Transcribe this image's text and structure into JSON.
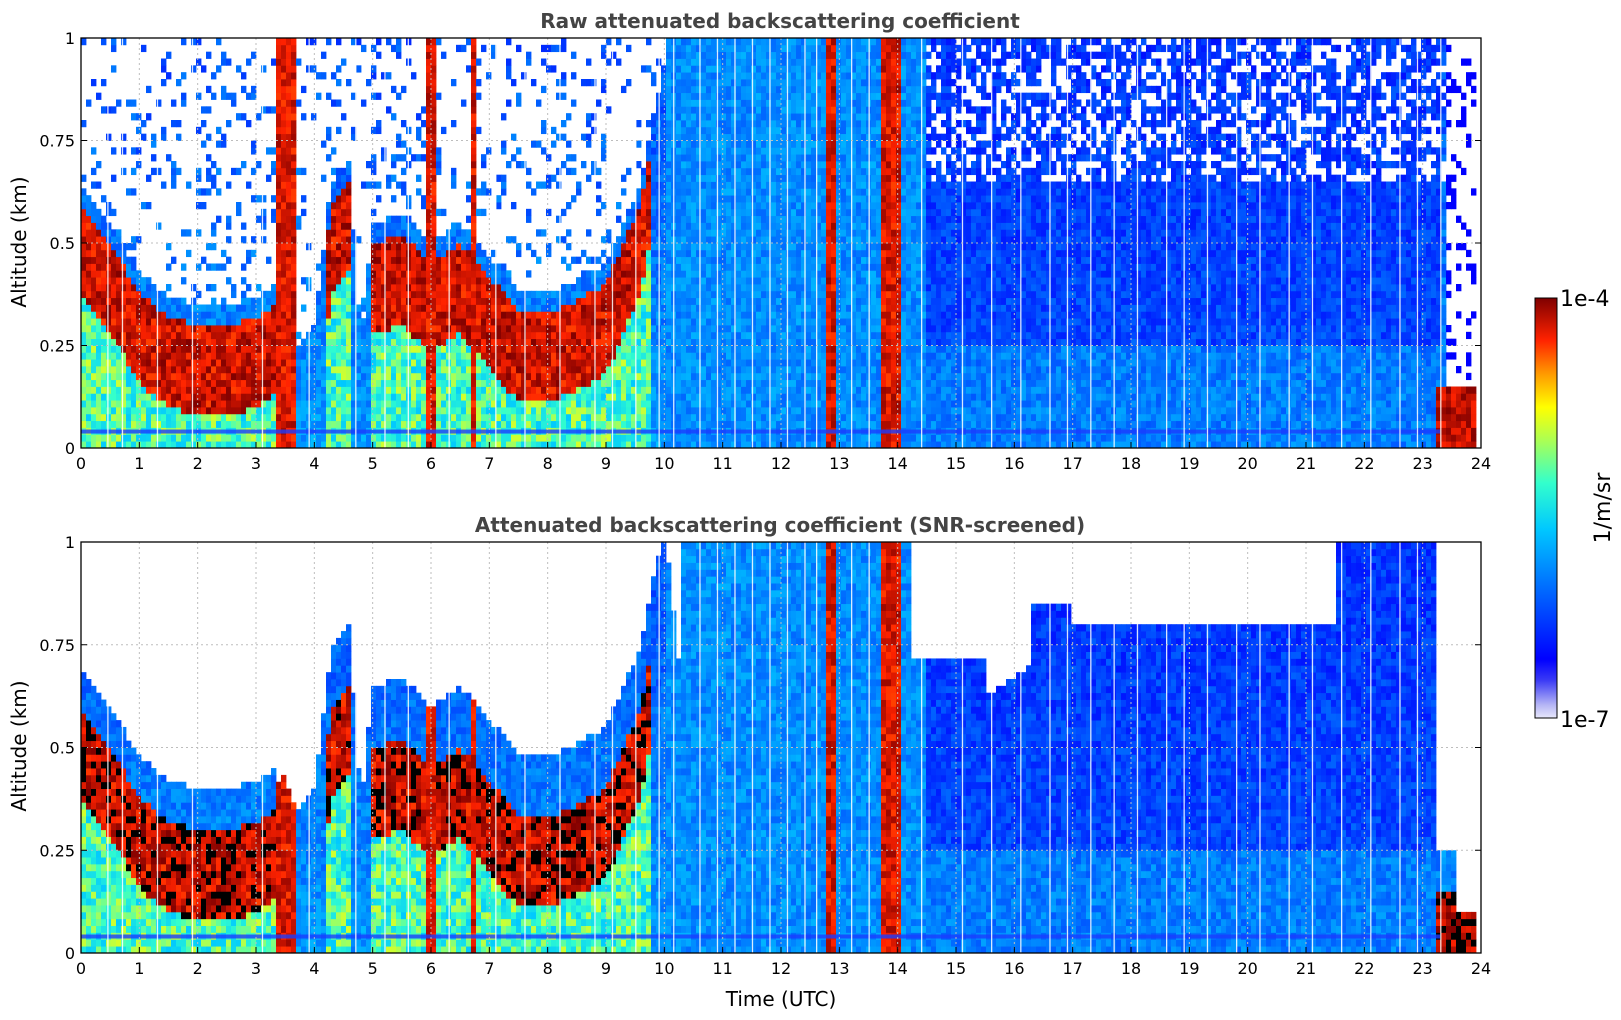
{
  "chart_data": [
    {
      "type": "heatmap",
      "title": "Raw attenuated backscattering coefficient",
      "xlabel": "",
      "ylabel": "Altitude (km)",
      "xlim": [
        0,
        24
      ],
      "ylim": [
        0,
        1
      ],
      "xticks": [
        "0",
        "1",
        "2",
        "3",
        "4",
        "5",
        "6",
        "7",
        "8",
        "9",
        "10",
        "11",
        "12",
        "13",
        "14",
        "15",
        "16",
        "17",
        "18",
        "19",
        "20",
        "21",
        "22",
        "23",
        "24"
      ],
      "yticks": [
        "0",
        "0.25",
        "0.5",
        "0.75",
        "1"
      ],
      "grid": true,
      "screened": false,
      "colorscale": "jet, log10",
      "colorbar_range": [
        "1e-7",
        "1e-4"
      ],
      "colorbar_label": "1/m/sr"
    },
    {
      "type": "heatmap",
      "title": "Attenuated backscattering coefficient (SNR-screened)",
      "xlabel": "Time (UTC)",
      "ylabel": "Altitude (km)",
      "xlim": [
        0,
        24
      ],
      "ylim": [
        0,
        1
      ],
      "xticks": [
        "0",
        "1",
        "2",
        "3",
        "4",
        "5",
        "6",
        "7",
        "8",
        "9",
        "10",
        "11",
        "12",
        "13",
        "14",
        "15",
        "16",
        "17",
        "18",
        "19",
        "20",
        "21",
        "22",
        "23",
        "24"
      ],
      "yticks": [
        "0",
        "0.25",
        "0.5",
        "0.75",
        "1"
      ],
      "grid": true,
      "screened": true,
      "colorscale": "jet, log10",
      "colorbar_range": [
        "1e-7",
        "1e-4"
      ],
      "colorbar_label": "1/m/sr"
    }
  ],
  "colorbar": {
    "top_label": "1e-4",
    "bottom_label": "1e-7",
    "unit": "1/m/sr"
  }
}
